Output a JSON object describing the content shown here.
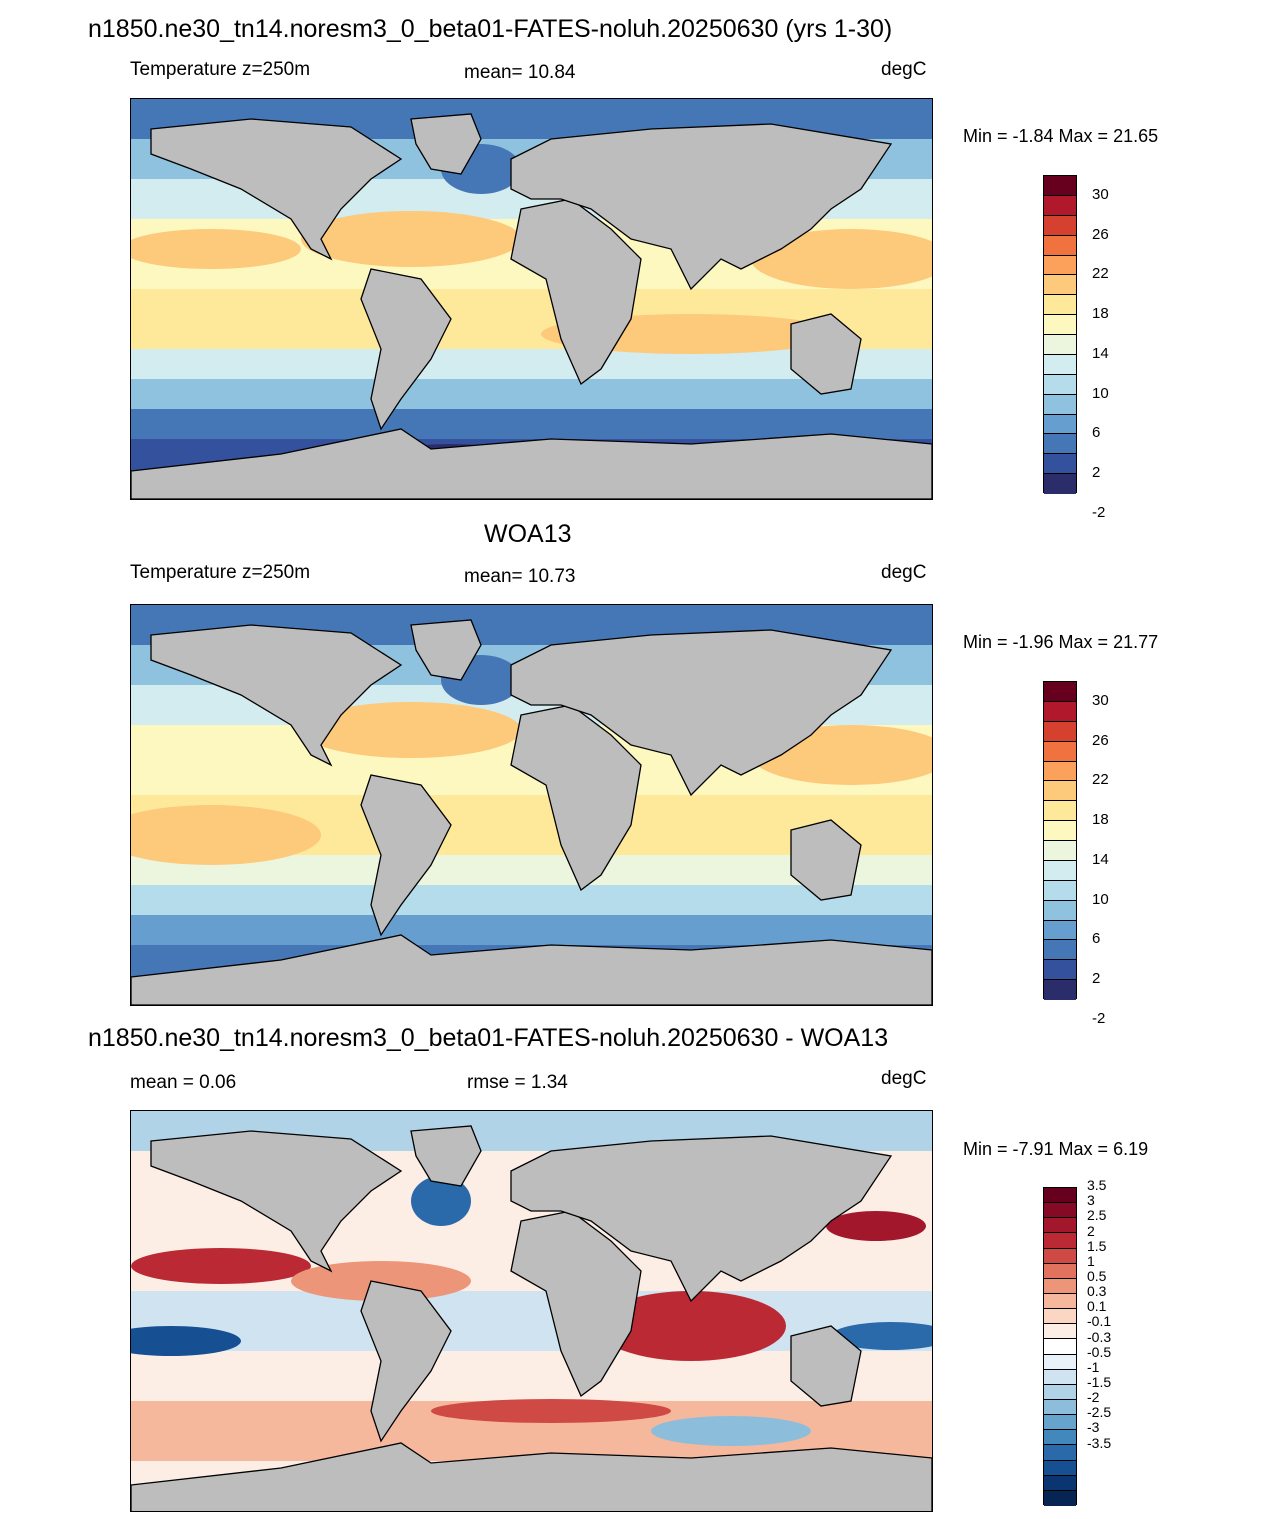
{
  "panels": [
    {
      "title": "n1850.ne30_tn14.noresm3_0_beta01-FATES-noluh.20250630 (yrs 1-30)",
      "left_label": "Temperature z=250m",
      "center_label": "mean=  10.84",
      "units": "degC",
      "minmax": "Min =  -1.84 Max =  21.65",
      "colorbar_labels": [
        "30",
        "26",
        "22",
        "18",
        "14",
        "10",
        "6",
        "2",
        "-2"
      ],
      "colorbar_colors": [
        "#67001f",
        "#b2182b",
        "#d6402e",
        "#f0733f",
        "#fba15b",
        "#fdc97a",
        "#fee99b",
        "#fdf8c0",
        "#ecf6de",
        "#d3ecef",
        "#b5dcea",
        "#8fc2df",
        "#669ecf",
        "#4577b7",
        "#33519c",
        "#2b2d6b"
      ]
    },
    {
      "title": "WOA13",
      "left_label": "Temperature z=250m",
      "center_label": "mean=  10.73",
      "units": "degC",
      "minmax": "Min =  -1.96 Max =  21.77",
      "colorbar_labels": [
        "30",
        "26",
        "22",
        "18",
        "14",
        "10",
        "6",
        "2",
        "-2"
      ],
      "colorbar_colors": [
        "#67001f",
        "#b2182b",
        "#d6402e",
        "#f0733f",
        "#fba15b",
        "#fdc97a",
        "#fee99b",
        "#fdf8c0",
        "#ecf6de",
        "#d3ecef",
        "#b5dcea",
        "#8fc2df",
        "#669ecf",
        "#4577b7",
        "#33519c",
        "#2b2d6b"
      ]
    },
    {
      "title": "n1850.ne30_tn14.noresm3_0_beta01-FATES-noluh.20250630 - WOA13",
      "left_label": "mean =   0.06",
      "center_label": "rmse =   1.34",
      "units": "degC",
      "minmax": "Min =  -7.91 Max =   6.19",
      "colorbar_labels": [
        "3.5",
        "3",
        "2.5",
        "2",
        "1.5",
        "1",
        "0.5",
        "0.3",
        "0.1",
        "-0.1",
        "-0.3",
        "-0.5",
        "-1",
        "-1.5",
        "-2",
        "-2.5",
        "-3",
        "-3.5"
      ],
      "colorbar_colors": [
        "#67001f",
        "#860a25",
        "#a3172d",
        "#bb2a34",
        "#cf4a45",
        "#e0725e",
        "#ec9579",
        "#f5b89d",
        "#fad6c3",
        "#fdeee5",
        "#ffffff",
        "#e8f2f8",
        "#cfe4f0",
        "#b0d3e7",
        "#8cbedc",
        "#66a4cd",
        "#4388bd",
        "#2a6aab",
        "#164f92",
        "#0a3570",
        "#062552"
      ]
    }
  ],
  "map_colors": {
    "land": "#bdbdbd",
    "coast": "#000000"
  }
}
